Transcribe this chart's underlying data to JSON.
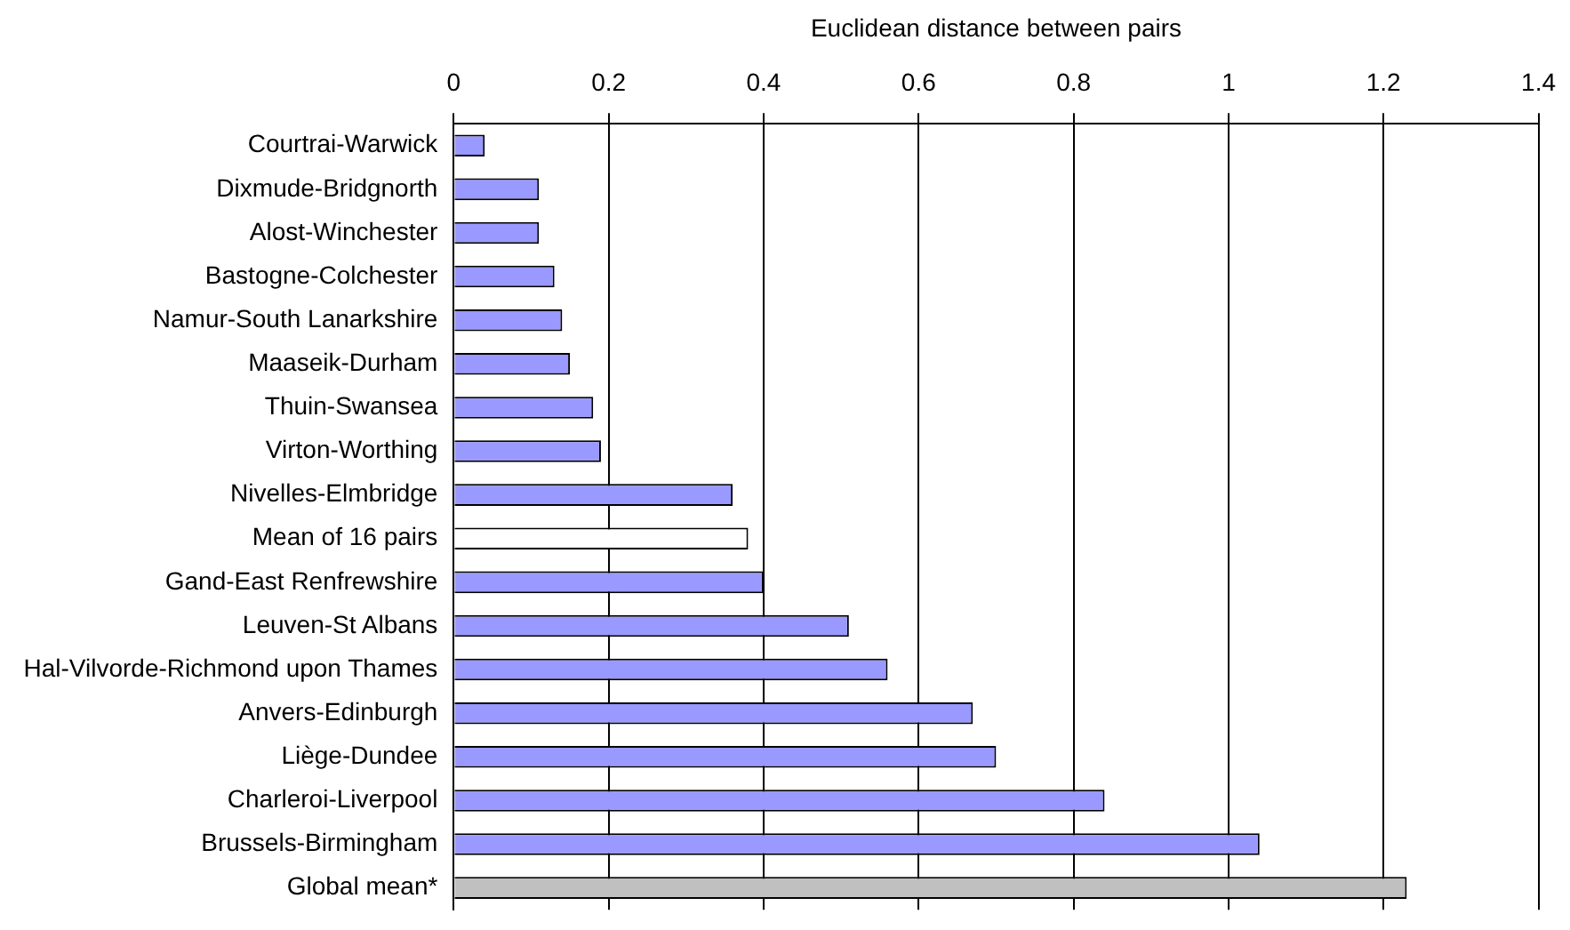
{
  "chart_data": {
    "type": "bar",
    "orientation": "horizontal",
    "xlabel": "Euclidean distance between pairs",
    "categories": [
      "Courtrai-Warwick",
      "Dixmude-Bridgnorth",
      "Alost-Winchester",
      "Bastogne-Colchester",
      "Namur-South Lanarkshire",
      "Maaseik-Durham",
      "Thuin-Swansea",
      "Virton-Worthing",
      "Nivelles-Elmbridge",
      "Mean of 16 pairs",
      "Gand-East Renfrewshire",
      "Leuven-St Albans",
      "Hal-Vilvorde-Richmond upon Thames",
      "Anvers-Edinburgh",
      "Liège-Dundee",
      "Charleroi-Liverpool",
      "Brussels-Birmingham",
      "Global mean*"
    ],
    "values": [
      0.04,
      0.11,
      0.11,
      0.13,
      0.14,
      0.15,
      0.18,
      0.19,
      0.36,
      0.38,
      0.4,
      0.51,
      0.56,
      0.67,
      0.7,
      0.84,
      1.04,
      1.23
    ],
    "colors": [
      "#9999ff",
      "#9999ff",
      "#9999ff",
      "#9999ff",
      "#9999ff",
      "#9999ff",
      "#9999ff",
      "#9999ff",
      "#9999ff",
      "#ffffff",
      "#9999ff",
      "#9999ff",
      "#9999ff",
      "#9999ff",
      "#9999ff",
      "#9999ff",
      "#9999ff",
      "#c0c0c0"
    ],
    "xlim": [
      0,
      1.4
    ],
    "xticks": [
      0,
      0.2,
      0.4,
      0.6,
      0.8,
      1,
      1.2,
      1.4
    ],
    "grid": "x",
    "legend": false
  }
}
